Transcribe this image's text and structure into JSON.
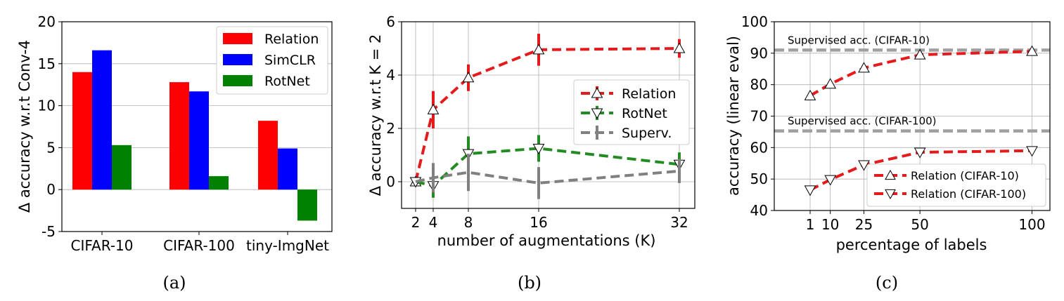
{
  "captions": [
    "(a)",
    "(b)",
    "(c)"
  ],
  "chart_data": [
    {
      "type": "bar",
      "caption": "(a)",
      "categories": [
        "CIFAR-10",
        "CIFAR-100",
        "tiny-ImgNet"
      ],
      "series": [
        {
          "name": "Relation",
          "color": "#ff0000",
          "values": [
            14.0,
            12.8,
            8.2
          ]
        },
        {
          "name": "SimCLR",
          "color": "#0000ff",
          "values": [
            16.6,
            11.7,
            4.9
          ]
        },
        {
          "name": "RotNet",
          "color": "#008000",
          "values": [
            5.3,
            1.6,
            -3.7
          ]
        }
      ],
      "ylabel": "Δ accuracy w.r.t Conv-4",
      "ylim": [
        -5,
        20
      ],
      "yticks": [
        -5,
        0,
        5,
        10,
        15,
        20
      ],
      "grid": "y",
      "legend": "top-right"
    },
    {
      "type": "line",
      "caption": "(b)",
      "x": [
        2,
        4,
        8,
        16,
        32
      ],
      "xticks": [
        2,
        4,
        8,
        16,
        32
      ],
      "xlabel": "number of augmentations (K)",
      "ylabel": "Δ accuracy w.r.t K = 2",
      "ylim": [
        -1,
        6
      ],
      "yticks": [
        0,
        2,
        4,
        6
      ],
      "grid": "both",
      "legend": "center-right",
      "series": [
        {
          "name": "Relation",
          "color": "#e41a1c",
          "marker": "triangle-up",
          "values": [
            0.0,
            2.7,
            3.9,
            4.95,
            5.0
          ],
          "err": [
            0.0,
            0.7,
            0.5,
            0.6,
            0.35
          ]
        },
        {
          "name": "RotNet",
          "color": "#228b22",
          "marker": "triangle-down",
          "values": [
            0.0,
            -0.15,
            1.05,
            1.25,
            0.65
          ],
          "err": [
            0.0,
            0.45,
            0.65,
            0.5,
            0.45
          ]
        },
        {
          "name": "Superv.",
          "color": "#808080",
          "marker": "none",
          "values": [
            0.0,
            0.15,
            0.35,
            -0.05,
            0.4
          ],
          "err": [
            0.0,
            0.55,
            0.7,
            0.6,
            0.45
          ]
        }
      ]
    },
    {
      "type": "line",
      "caption": "(c)",
      "xlabel": "percentage of labels",
      "ylabel": "accuracy (linear eval)",
      "xticks": [
        1,
        10,
        25,
        50,
        100
      ],
      "xlim": [
        -15,
        108
      ],
      "ylim": [
        40,
        100
      ],
      "yticks": [
        40,
        50,
        60,
        70,
        80,
        90,
        100
      ],
      "grid": "both",
      "legend": "bottom-right",
      "reference_lines": [
        {
          "label": "Supervised acc. (CIFAR-10)",
          "value": 91.0,
          "color": "#a0a0a0"
        },
        {
          "label": "Supervised acc. (CIFAR-100)",
          "value": 65.3,
          "color": "#a0a0a0"
        }
      ],
      "series": [
        {
          "name": "Relation (CIFAR-10)",
          "color": "#e41a1c",
          "marker": "triangle-up",
          "x": [
            1,
            10,
            25,
            50,
            100
          ],
          "values": [
            76.5,
            80.2,
            85.3,
            89.5,
            90.6
          ]
        },
        {
          "name": "Relation (CIFAR-100)",
          "color": "#e41a1c",
          "marker": "triangle-down",
          "x": [
            1,
            10,
            25,
            50,
            100
          ],
          "values": [
            46.5,
            49.8,
            54.5,
            58.5,
            59.0
          ]
        }
      ]
    }
  ]
}
